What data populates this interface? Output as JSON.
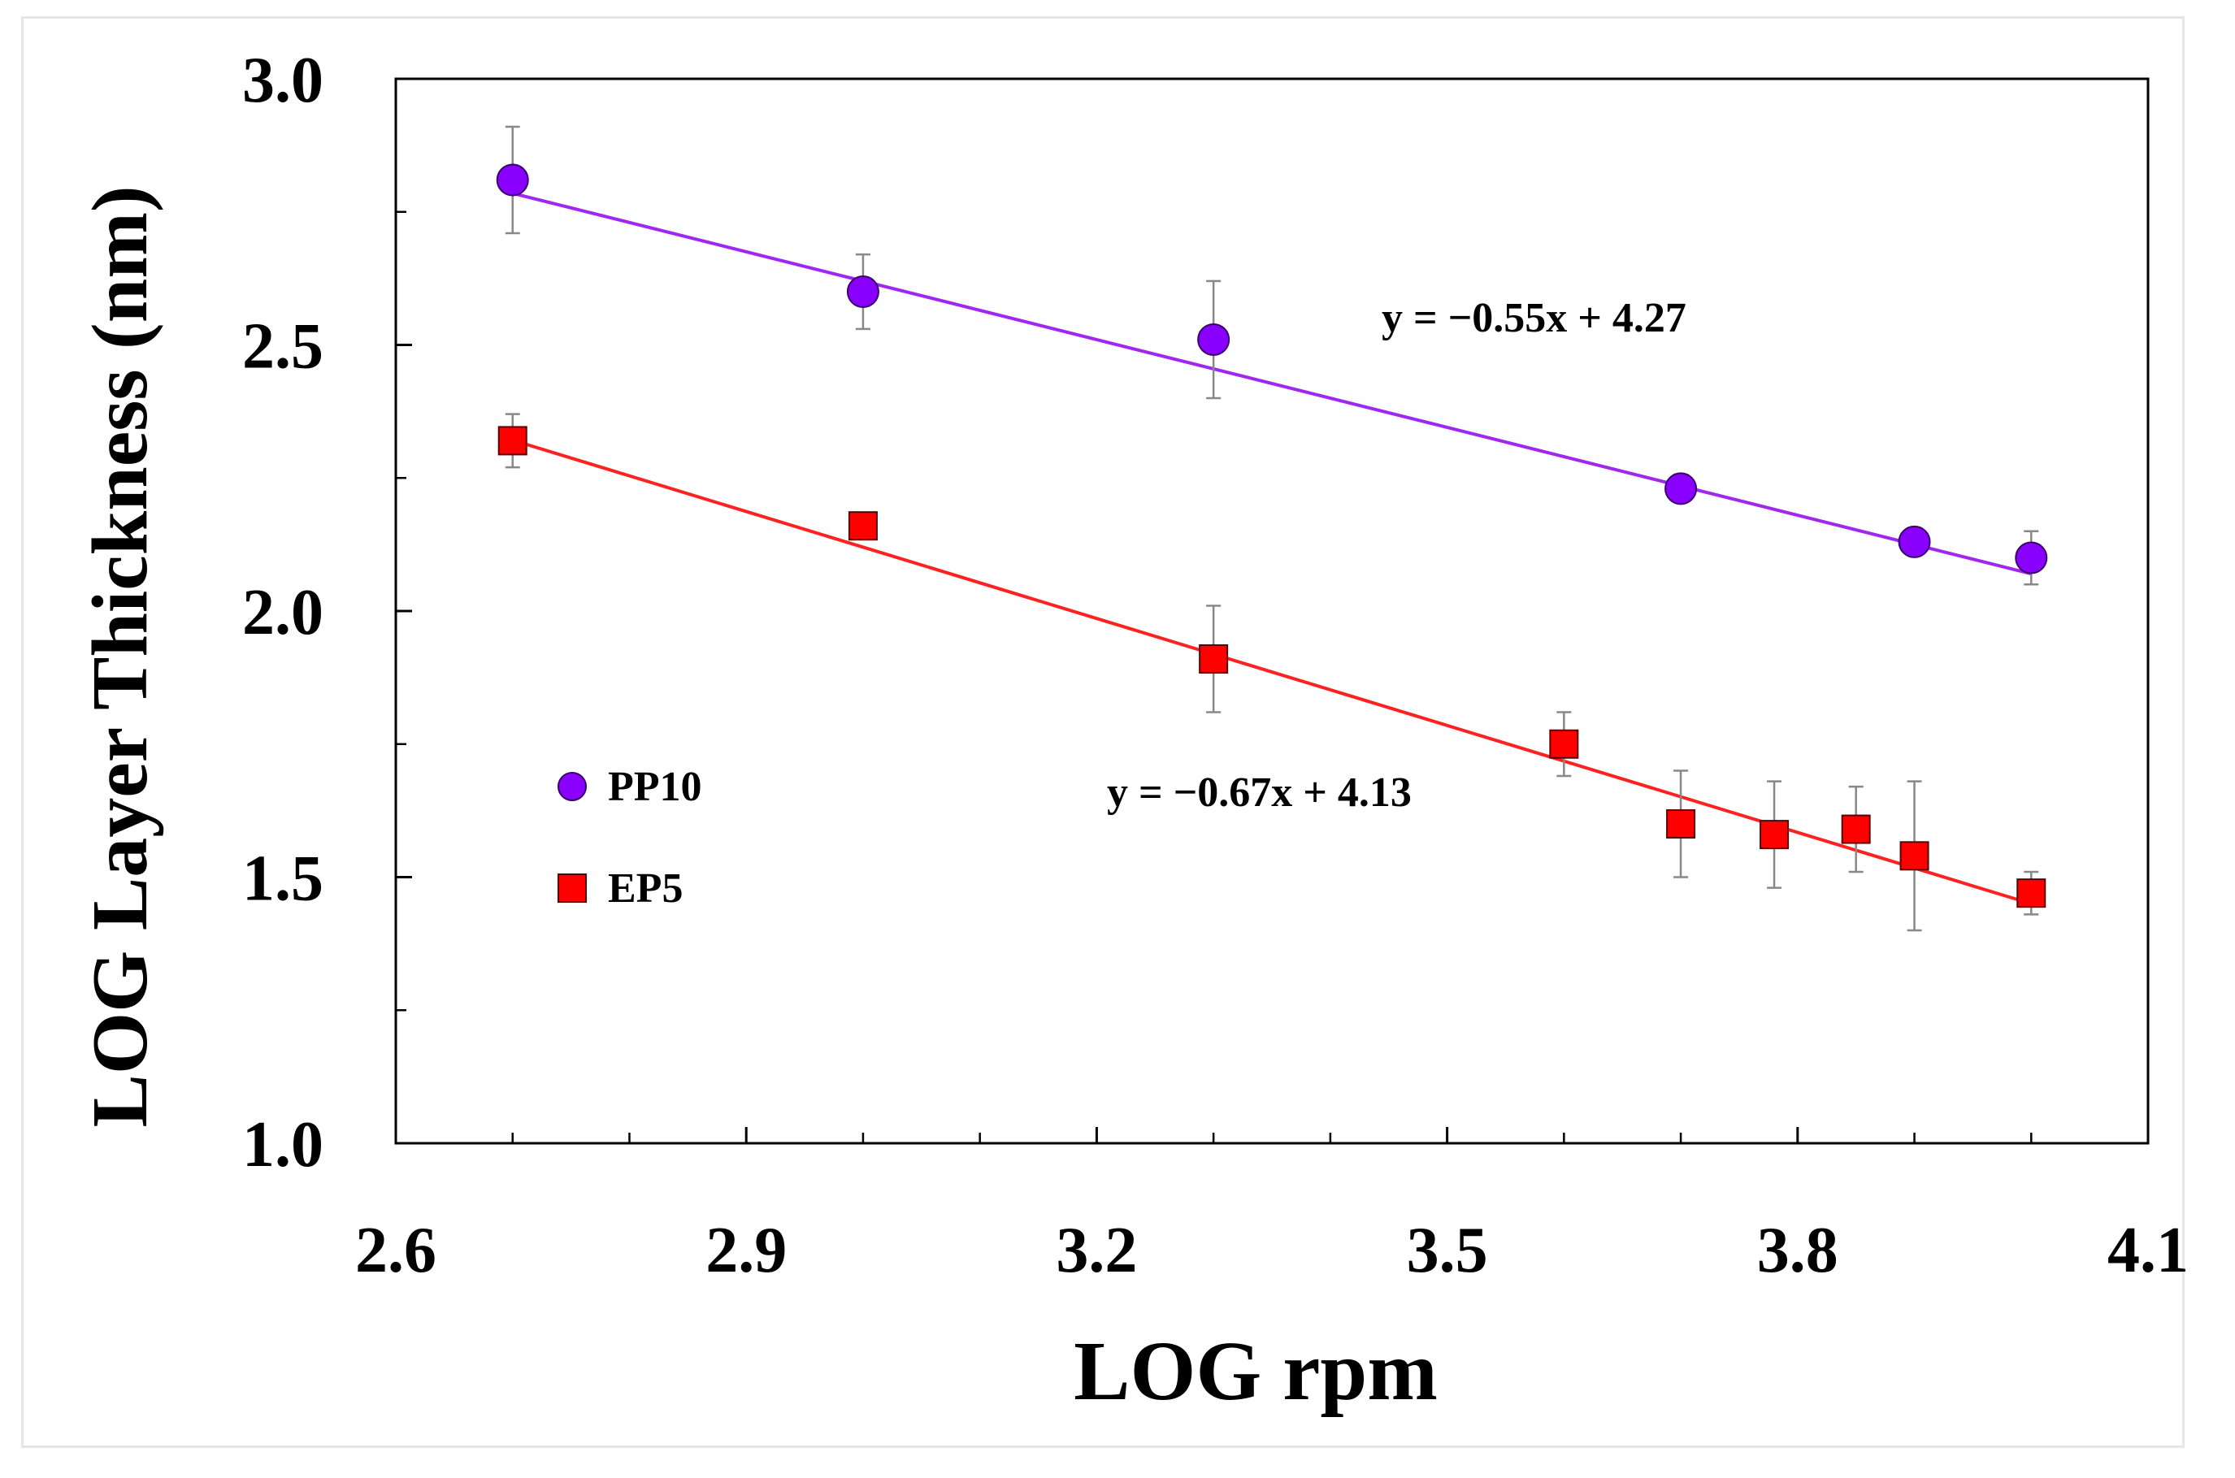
{
  "chart_data": {
    "type": "scatter",
    "xlabel": "LOG rpm",
    "ylabel": "LOG Layer Thickness (nm)",
    "xlim": [
      2.6,
      4.1
    ],
    "ylim": [
      1.0,
      3.0
    ],
    "x_major_ticks": [
      2.6,
      2.9,
      3.2,
      3.5,
      3.8,
      4.1
    ],
    "x_tick_labels": [
      "2.6",
      "2.9",
      "3.2",
      "3.5",
      "3.8",
      "4.1"
    ],
    "x_minor_ticks": [
      2.7,
      2.8,
      3.0,
      3.1,
      3.3,
      3.4,
      3.6,
      3.7,
      3.9,
      4.0
    ],
    "y_major_ticks": [
      1.0,
      1.5,
      2.0,
      2.5,
      3.0
    ],
    "y_tick_labels": [
      "1.0",
      "1.5",
      "2.0",
      "2.5",
      "3.0"
    ],
    "y_minor_ticks": [
      1.25,
      1.75,
      2.25,
      2.75
    ],
    "series": [
      {
        "name": "PP10",
        "marker": "circle",
        "color": "#8a00ff",
        "x": [
          2.7,
          3.0,
          3.3,
          3.7,
          3.9,
          4.0
        ],
        "y": [
          2.81,
          2.6,
          2.51,
          2.23,
          2.13,
          2.1
        ],
        "err": [
          0.1,
          0.07,
          0.11,
          0.0,
          0.0,
          0.05
        ],
        "fit": {
          "slope": -0.55,
          "intercept": 4.27,
          "label": "y = −0.55x + 4.27",
          "color": "#a126f2"
        }
      },
      {
        "name": "EP5",
        "marker": "square",
        "color": "#ff0000",
        "x": [
          2.7,
          3.0,
          3.3,
          3.6,
          3.7,
          3.78,
          3.85,
          3.9,
          4.0
        ],
        "y": [
          2.32,
          2.16,
          1.91,
          1.75,
          1.6,
          1.58,
          1.59,
          1.54,
          1.47
        ],
        "err": [
          0.05,
          0.0,
          0.1,
          0.06,
          0.1,
          0.1,
          0.08,
          0.14,
          0.04
        ],
        "fit": {
          "slope": -0.67,
          "intercept": 4.13,
          "label": "y = −0.67x + 4.13",
          "color": "#ff2020"
        }
      }
    ],
    "legend": {
      "placement": "middle-left",
      "entries": [
        "PP10",
        "EP5"
      ]
    }
  }
}
